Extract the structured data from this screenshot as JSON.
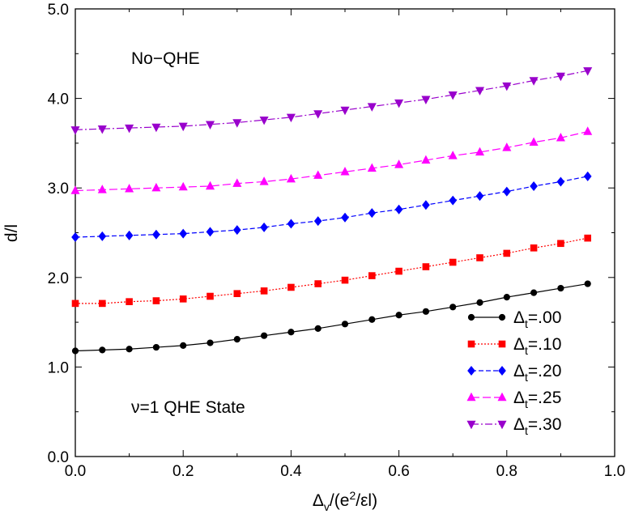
{
  "chart_data": {
    "type": "line",
    "xlabel": "Δv/(e²/εl)",
    "ylabel": "d/l",
    "xlim": [
      0.0,
      1.0
    ],
    "ylim": [
      0.0,
      5.0
    ],
    "xticks": [
      0.0,
      0.2,
      0.4,
      0.6,
      0.8,
      1.0
    ],
    "yticks": [
      0.0,
      1.0,
      2.0,
      3.0,
      4.0,
      5.0
    ],
    "xtick_labels": [
      "0.0",
      "0.2",
      "0.4",
      "0.6",
      "0.8",
      "1.0"
    ],
    "ytick_labels": [
      "0.0",
      "1.0",
      "2.0",
      "3.0",
      "4.0",
      "5.0"
    ],
    "grid": false,
    "legend_position": "bottom-right",
    "annotations": [
      {
        "text": "No−QHE",
        "x": 0.08,
        "y": 4.45
      },
      {
        "text": "ν=1 QHE State",
        "x": 0.08,
        "y": 0.55
      }
    ],
    "x": [
      0.0,
      0.05,
      0.1,
      0.15,
      0.2,
      0.25,
      0.3,
      0.35,
      0.4,
      0.45,
      0.5,
      0.55,
      0.6,
      0.65,
      0.7,
      0.75,
      0.8,
      0.85,
      0.9,
      0.95
    ],
    "series": [
      {
        "name": "Δt=.00",
        "name_sub": "t",
        "name_value": "=.00",
        "color": "#000000",
        "marker": "circle",
        "dash": "solid",
        "values": [
          1.18,
          1.19,
          1.2,
          1.22,
          1.24,
          1.27,
          1.31,
          1.35,
          1.39,
          1.43,
          1.48,
          1.53,
          1.58,
          1.62,
          1.67,
          1.72,
          1.78,
          1.83,
          1.88,
          1.93
        ]
      },
      {
        "name": "Δt=.10",
        "name_sub": "t",
        "name_value": "=.10",
        "color": "#ff0000",
        "marker": "square",
        "dash": "dotted",
        "values": [
          1.71,
          1.71,
          1.73,
          1.74,
          1.76,
          1.79,
          1.82,
          1.85,
          1.89,
          1.93,
          1.97,
          2.02,
          2.07,
          2.12,
          2.17,
          2.22,
          2.27,
          2.33,
          2.38,
          2.44
        ]
      },
      {
        "name": "Δt=.20",
        "name_sub": "t",
        "name_value": "=.20",
        "color": "#0000ff",
        "marker": "diamond",
        "dash": "dashed",
        "values": [
          2.45,
          2.46,
          2.47,
          2.48,
          2.49,
          2.51,
          2.53,
          2.56,
          2.6,
          2.63,
          2.67,
          2.72,
          2.76,
          2.81,
          2.86,
          2.91,
          2.96,
          3.02,
          3.07,
          3.13
        ]
      },
      {
        "name": "Δt=.25",
        "name_sub": "t",
        "name_value": "=.25",
        "color": "#ff00ff",
        "marker": "triangle-up",
        "dash": "longdash",
        "values": [
          2.97,
          2.98,
          2.99,
          3.0,
          3.01,
          3.02,
          3.05,
          3.07,
          3.1,
          3.14,
          3.18,
          3.22,
          3.26,
          3.31,
          3.36,
          3.4,
          3.45,
          3.51,
          3.56,
          3.63
        ]
      },
      {
        "name": "Δt=.30",
        "name_sub": "t",
        "name_value": "=.30",
        "color": "#9900cc",
        "marker": "triangle-down",
        "dash": "dashdot",
        "values": [
          3.65,
          3.66,
          3.67,
          3.68,
          3.69,
          3.71,
          3.73,
          3.76,
          3.79,
          3.83,
          3.87,
          3.91,
          3.95,
          3.99,
          4.04,
          4.09,
          4.14,
          4.2,
          4.25,
          4.31
        ]
      }
    ]
  }
}
